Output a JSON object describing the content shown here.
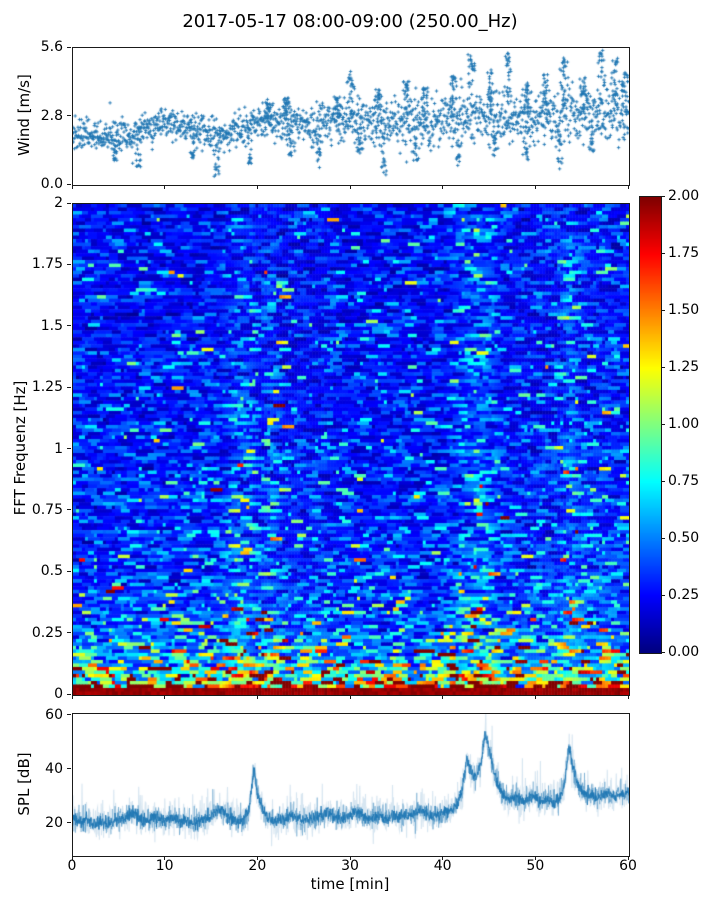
{
  "title": "2017-05-17 08:00-09:00 (250.00_Hz)",
  "chart_data": [
    {
      "type": "scatter",
      "name": "wind",
      "ylabel": "Wind [m/s]",
      "marker": "plus",
      "color": "#1f77b4",
      "xlim": [
        0,
        60
      ],
      "ylim": [
        0,
        5.6
      ],
      "yticks": [
        0.0,
        2.8,
        5.6
      ],
      "ytick_labels": [
        "0.0",
        "2.8",
        "5.6"
      ],
      "xticks": [
        0,
        10,
        20,
        30,
        40,
        50,
        60
      ],
      "n_points": 1750,
      "mean_curve": [
        [
          0,
          2.1
        ],
        [
          3,
          2.0
        ],
        [
          6,
          1.9
        ],
        [
          8,
          2.3
        ],
        [
          10,
          2.5
        ],
        [
          12,
          2.4
        ],
        [
          14,
          2.1
        ],
        [
          16,
          2.0
        ],
        [
          18,
          2.3
        ],
        [
          20,
          2.5
        ],
        [
          22,
          2.6
        ],
        [
          24,
          2.5
        ],
        [
          26,
          2.4
        ],
        [
          28,
          2.6
        ],
        [
          30,
          2.6
        ],
        [
          32,
          2.4
        ],
        [
          34,
          2.3
        ],
        [
          36,
          2.6
        ],
        [
          38,
          2.5
        ],
        [
          40,
          2.6
        ],
        [
          42,
          2.7
        ],
        [
          44,
          2.8
        ],
        [
          46,
          2.7
        ],
        [
          48,
          2.6
        ],
        [
          50,
          2.8
        ],
        [
          52,
          2.7
        ],
        [
          54,
          2.9
        ],
        [
          56,
          2.8
        ],
        [
          58,
          2.9
        ],
        [
          60,
          2.9
        ]
      ],
      "spread_curve": [
        [
          0,
          0.3
        ],
        [
          15,
          0.32
        ],
        [
          25,
          0.4
        ],
        [
          40,
          0.5
        ],
        [
          60,
          0.55
        ]
      ],
      "gusts": [
        [
          21,
          3.4
        ],
        [
          23,
          3.6
        ],
        [
          28.5,
          3.6
        ],
        [
          30,
          4.7
        ],
        [
          33,
          3.9
        ],
        [
          36,
          4.3
        ],
        [
          38,
          4.0
        ],
        [
          41,
          4.5
        ],
        [
          43,
          5.5
        ],
        [
          45,
          4.8
        ],
        [
          47,
          5.4
        ],
        [
          49,
          4.2
        ],
        [
          51,
          4.6
        ],
        [
          53,
          5.2
        ],
        [
          55,
          4.4
        ],
        [
          57,
          5.5
        ],
        [
          58.5,
          5.2
        ],
        [
          59.5,
          4.6
        ]
      ],
      "dips": [
        [
          4.5,
          1.1
        ],
        [
          7,
          0.8
        ],
        [
          13,
          1.2
        ],
        [
          15.5,
          0.4
        ],
        [
          19,
          0.9
        ],
        [
          23.5,
          1.3
        ],
        [
          26.5,
          0.8
        ],
        [
          31,
          1.4
        ],
        [
          33.5,
          0.5
        ],
        [
          37,
          1.1
        ],
        [
          41.5,
          0.9
        ],
        [
          45.5,
          1.3
        ],
        [
          49,
          1.0
        ],
        [
          52.5,
          0.7
        ],
        [
          56,
          1.4
        ]
      ]
    },
    {
      "type": "heatmap",
      "name": "spectrogram",
      "ylabel": "FFT Frequenz [Hz]",
      "colormap": "jet",
      "clim": [
        0,
        2
      ],
      "xlim": [
        0,
        60
      ],
      "ylim": [
        0,
        2
      ],
      "yticks": [
        0,
        0.25,
        0.5,
        0.75,
        1,
        1.25,
        1.5,
        1.75,
        2
      ],
      "ytick_labels": [
        "0",
        "0.25",
        "0.5",
        "0.75",
        "1",
        "1.25",
        "1.5",
        "1.75",
        "2"
      ],
      "colorbar_ticks": [
        0,
        0.25,
        0.5,
        0.75,
        1,
        1.25,
        1.5,
        1.75,
        2
      ],
      "colorbar_tick_labels": [
        "0.00",
        "0.25",
        "0.50",
        "0.75",
        "1.00",
        "1.25",
        "1.50",
        "1.75",
        "2.00"
      ],
      "freq_profile": [
        [
          0,
          2.0
        ],
        [
          0.01,
          1.85
        ],
        [
          0.03,
          1.35
        ],
        [
          0.05,
          1.05
        ],
        [
          0.08,
          0.85
        ],
        [
          0.12,
          0.65
        ],
        [
          0.18,
          0.52
        ],
        [
          0.25,
          0.44
        ],
        [
          0.35,
          0.38
        ],
        [
          0.5,
          0.34
        ],
        [
          0.7,
          0.31
        ],
        [
          1.0,
          0.29
        ],
        [
          1.3,
          0.27
        ],
        [
          1.6,
          0.26
        ],
        [
          2,
          0.25
        ]
      ],
      "time_mod": [
        [
          0,
          1.0
        ],
        [
          16,
          1.0
        ],
        [
          17.5,
          1.3
        ],
        [
          19,
          1.35
        ],
        [
          20,
          1.05
        ],
        [
          21.5,
          1.25
        ],
        [
          23,
          1.0
        ],
        [
          30,
          0.95
        ],
        [
          40,
          1.0
        ],
        [
          41.5,
          1.2
        ],
        [
          43,
          1.45
        ],
        [
          44.5,
          1.45
        ],
        [
          46,
          1.1
        ],
        [
          48,
          1.0
        ],
        [
          52,
          1.05
        ],
        [
          53.5,
          1.4
        ],
        [
          55,
          1.15
        ],
        [
          57,
          1.2
        ],
        [
          58,
          1.1
        ],
        [
          60,
          1.1
        ]
      ],
      "grid": {
        "cols": 186,
        "rows": 140
      },
      "noise_sigma": 0.5
    },
    {
      "type": "line",
      "name": "spl",
      "ylabel": "SPL [dB]",
      "xlabel": "time [min]",
      "color": "#1f77b4",
      "xlim": [
        0,
        60
      ],
      "ylim": [
        8.1,
        60.7
      ],
      "yticks": [
        20,
        40,
        60
      ],
      "ytick_labels": [
        "20",
        "40",
        "60"
      ],
      "xticks": [
        0,
        10,
        20,
        30,
        40,
        50,
        60
      ],
      "xtick_labels": [
        "0",
        "10",
        "20",
        "30",
        "40",
        "50",
        "60"
      ],
      "noise_sigma": 1.3,
      "envelope": [
        [
          0,
          22
        ],
        [
          0.5,
          21
        ],
        [
          1,
          20.5
        ],
        [
          1.5,
          21.5
        ],
        [
          2,
          20.5
        ],
        [
          2.5,
          20
        ],
        [
          3,
          21
        ],
        [
          3.5,
          20.5
        ],
        [
          4,
          20
        ],
        [
          4.5,
          21
        ],
        [
          5,
          21.5
        ],
        [
          5.5,
          22
        ],
        [
          6,
          23
        ],
        [
          6.5,
          24
        ],
        [
          7,
          22.5
        ],
        [
          7.5,
          21.5
        ],
        [
          8,
          21
        ],
        [
          8.5,
          22
        ],
        [
          9,
          22.5
        ],
        [
          9.5,
          21.5
        ],
        [
          10,
          21
        ],
        [
          10.5,
          22
        ],
        [
          11,
          22.5
        ],
        [
          11.5,
          21.5
        ],
        [
          12,
          21.5
        ],
        [
          12.5,
          20.5
        ],
        [
          13,
          20.5
        ],
        [
          13.5,
          21
        ],
        [
          14,
          21.5
        ],
        [
          14.5,
          22
        ],
        [
          15,
          23
        ],
        [
          15.5,
          25
        ],
        [
          16,
          26
        ],
        [
          16.5,
          23.5
        ],
        [
          17,
          22
        ],
        [
          17.5,
          21.5
        ],
        [
          18,
          21
        ],
        [
          18.5,
          22
        ],
        [
          19,
          25
        ],
        [
          19.5,
          40
        ],
        [
          20,
          30
        ],
        [
          20.5,
          25
        ],
        [
          21,
          22.5
        ],
        [
          21.5,
          21.5
        ],
        [
          22,
          21
        ],
        [
          22.5,
          21.5
        ],
        [
          23,
          22
        ],
        [
          23.5,
          23.5
        ],
        [
          24,
          22
        ],
        [
          24.5,
          21.5
        ],
        [
          25,
          21.5
        ],
        [
          25.5,
          22
        ],
        [
          26,
          22
        ],
        [
          26.5,
          22.5
        ],
        [
          27,
          23
        ],
        [
          27.5,
          24.5
        ],
        [
          28,
          23
        ],
        [
          28.5,
          22
        ],
        [
          29,
          22
        ],
        [
          29.5,
          22.5
        ],
        [
          30,
          23
        ],
        [
          30.5,
          24.5
        ],
        [
          31,
          23.5
        ],
        [
          31.5,
          22.5
        ],
        [
          32,
          22
        ],
        [
          32.5,
          22.5
        ],
        [
          33,
          23
        ],
        [
          33.5,
          22.5
        ],
        [
          34,
          22
        ],
        [
          34.5,
          23.5
        ],
        [
          35,
          22.5
        ],
        [
          35.5,
          23
        ],
        [
          36,
          23
        ],
        [
          36.5,
          23.5
        ],
        [
          37,
          24
        ],
        [
          37.5,
          25.5
        ],
        [
          38,
          24
        ],
        [
          38.5,
          23
        ],
        [
          39,
          23
        ],
        [
          39.5,
          23.5
        ],
        [
          40,
          24
        ],
        [
          40.5,
          25
        ],
        [
          41,
          26
        ],
        [
          41.5,
          28
        ],
        [
          42,
          33
        ],
        [
          42.5,
          44
        ],
        [
          43,
          39
        ],
        [
          43.5,
          37
        ],
        [
          44,
          42
        ],
        [
          44.5,
          53
        ],
        [
          45,
          46
        ],
        [
          45.5,
          38
        ],
        [
          46,
          33
        ],
        [
          46.5,
          30.5
        ],
        [
          47,
          29
        ],
        [
          47.5,
          29.5
        ],
        [
          48,
          30
        ],
        [
          48.5,
          28.5
        ],
        [
          49,
          29
        ],
        [
          49.5,
          30
        ],
        [
          50,
          29.5
        ],
        [
          50.5,
          28
        ],
        [
          51,
          29
        ],
        [
          51.5,
          28.5
        ],
        [
          52,
          28
        ],
        [
          52.5,
          30
        ],
        [
          53,
          34
        ],
        [
          53.5,
          48
        ],
        [
          54,
          40
        ],
        [
          54.5,
          34
        ],
        [
          55,
          31.5
        ],
        [
          55.5,
          30
        ],
        [
          56,
          31
        ],
        [
          56.5,
          29.5
        ],
        [
          57,
          30
        ],
        [
          57.5,
          31.5
        ],
        [
          58,
          31
        ],
        [
          58.5,
          30
        ],
        [
          59,
          31.5
        ],
        [
          59.5,
          31
        ],
        [
          60,
          32
        ]
      ]
    }
  ]
}
